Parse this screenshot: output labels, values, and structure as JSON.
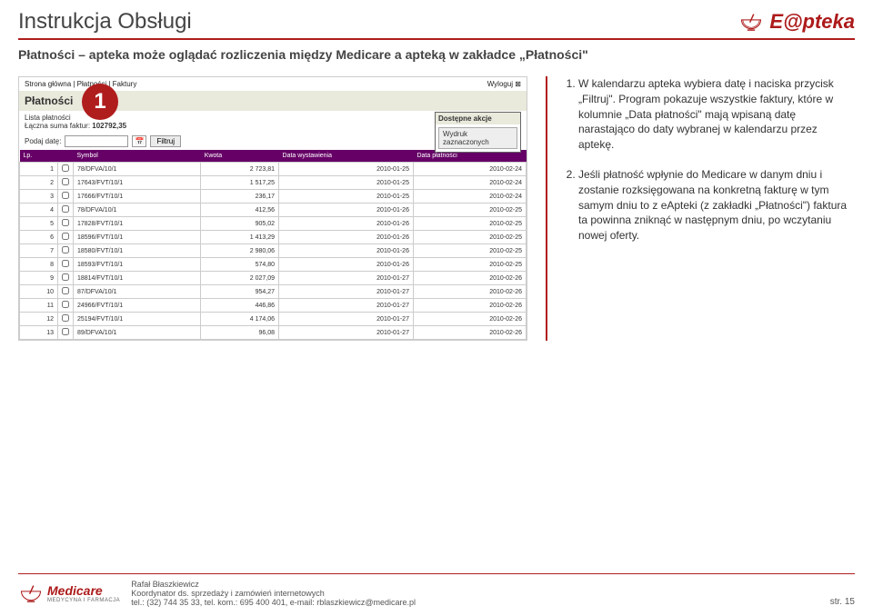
{
  "doc_title": "Instrukcja Obsługi",
  "brand": "E@pteka",
  "subtitle": "Płatności – apteka może oglądać rozliczenia między Medicare a apteką w zakładce „Płatności\"",
  "badge": "1",
  "screenshot": {
    "breadcrumb": "Strona główna | Płatności | Faktury",
    "logout": "Wyloguj ⊠",
    "title": "Płatności",
    "actions_header": "Dostępne akcje",
    "actions_button": "Wydruk zaznaczonych",
    "list_label": "Lista płatności",
    "sum_label": "Łączna suma faktur:",
    "sum_value": "102792,35",
    "filter_label": "Podaj datę:",
    "filter_button": "Filtruj",
    "columns": [
      "Lp.",
      "",
      "Symbol",
      "Kwota",
      "Data wystawienia",
      "Data płatności"
    ],
    "rows": [
      [
        "1",
        "78/DFVA/10/1",
        "2 723,81",
        "2010-01-25",
        "2010-02-24"
      ],
      [
        "2",
        "17643/FVT/10/1",
        "1 517,25",
        "2010-01-25",
        "2010-02-24"
      ],
      [
        "3",
        "17666/FVT/10/1",
        "236,17",
        "2010-01-25",
        "2010-02-24"
      ],
      [
        "4",
        "78/DFVA/10/1",
        "412,56",
        "2010-01-26",
        "2010-02-25"
      ],
      [
        "5",
        "17828/FVT/10/1",
        "905,02",
        "2010-01-26",
        "2010-02-25"
      ],
      [
        "6",
        "18596/FVT/10/1",
        "1 413,29",
        "2010-01-26",
        "2010-02-25"
      ],
      [
        "7",
        "18580/FVT/10/1",
        "2 980,06",
        "2010-01-26",
        "2010-02-25"
      ],
      [
        "8",
        "18593/FVT/10/1",
        "574,80",
        "2010-01-26",
        "2010-02-25"
      ],
      [
        "9",
        "18814/FVT/10/1",
        "2 027,09",
        "2010-01-27",
        "2010-02-26"
      ],
      [
        "10",
        "87/DFVA/10/1",
        "954,27",
        "2010-01-27",
        "2010-02-26"
      ],
      [
        "11",
        "24966/FVT/10/1",
        "446,86",
        "2010-01-27",
        "2010-02-26"
      ],
      [
        "12",
        "25194/FVT/10/1",
        "4 174,06",
        "2010-01-27",
        "2010-02-26"
      ],
      [
        "13",
        "89/DFVA/10/1",
        "96,08",
        "2010-01-27",
        "2010-02-26"
      ]
    ]
  },
  "instructions": [
    "W kalendarzu apteka wybiera datę i naciska przycisk „Filtruj\". Program pokazuje wszystkie faktury, które w kolumnie „Data płatności\" mają wpisaną datę narastająco do daty wybranej w kalendarzu przez aptekę.",
    "Jeśli płatność wpłynie do Medicare w danym dniu i zostanie rozksięgowana na konkretną fakturę w tym samym dniu to z eApteki (z zakładki „Płatności\") faktura ta powinna zniknąć w następnym dniu, po wczytaniu nowej oferty."
  ],
  "footer": {
    "brand": "Medicare",
    "brand_sub": "MEDYCYNA I FARMACJA",
    "name_line": "Rafał Błaszkiewicz",
    "role_line": "Koordynator ds. sprzedaży i zamówień internetowych",
    "contact_line": "tel.: (32) 744 35 33, tel. kom.: 695 400 401, e-mail: rblaszkiewicz@medicare.pl",
    "page": "str. 15"
  }
}
